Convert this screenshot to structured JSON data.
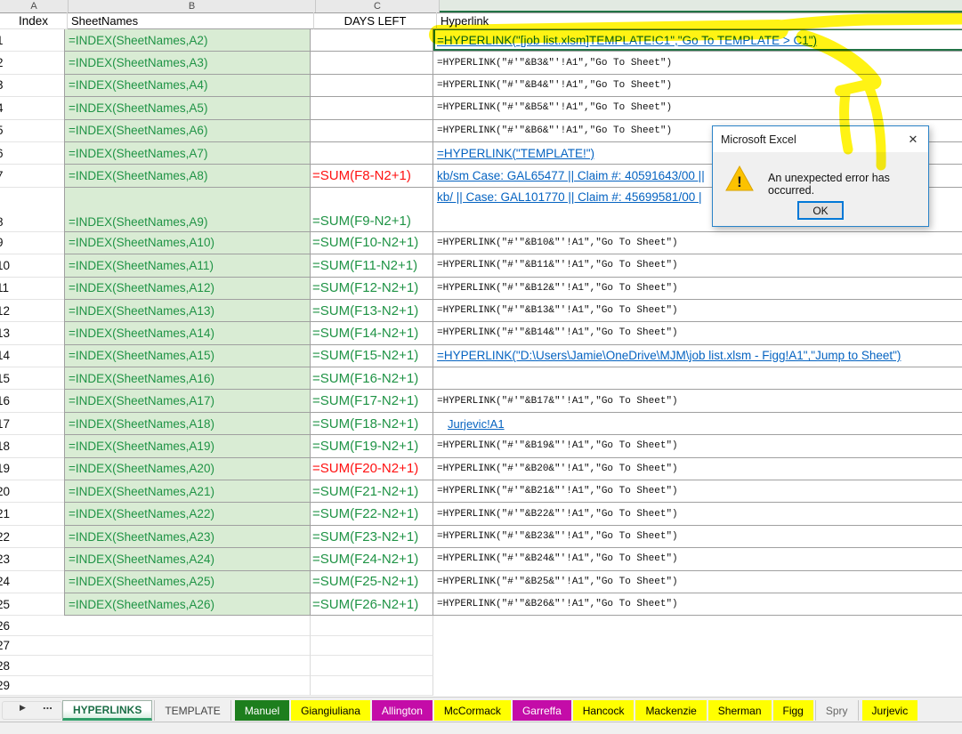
{
  "colors": {
    "accent_green": "#217346",
    "hyperlink_blue": "#0563C1",
    "formula_green": "#1f9345",
    "formula_red": "#ff1111",
    "green_fill": "#d9ecd4",
    "tab_yellow": "#ffff00",
    "tab_green": "#1d7e1d",
    "tab_magenta": "#c40ca8",
    "dialog_border": "#2a83c8",
    "highlighter": "#fff200"
  },
  "sheet": {
    "column_letters": [
      "A",
      "B",
      "C",
      "D"
    ],
    "headers": {
      "a": "Index",
      "b": "SheetNames",
      "c": "DAYS LEFT",
      "d": "Hyperlink"
    },
    "rows": [
      {
        "n": "1",
        "b": "=INDEX(SheetNames,A2)",
        "c": "",
        "cc": "",
        "d": "=HYPERLINK(\"[job list.xlsm]TEMPLATE!C1\",\"Go To TEMPLATE > C1\")",
        "ds": "link",
        "sel": true
      },
      {
        "n": "2",
        "b": "=INDEX(SheetNames,A3)",
        "c": "",
        "cc": "",
        "d": "=HYPERLINK(\"#'\"&B3&\"'!A1\",\"Go To Sheet\")",
        "ds": "mono"
      },
      {
        "n": "3",
        "b": "=INDEX(SheetNames,A4)",
        "c": "",
        "cc": "",
        "d": "=HYPERLINK(\"#'\"&B4&\"'!A1\",\"Go To Sheet\")",
        "ds": "mono"
      },
      {
        "n": "4",
        "b": "=INDEX(SheetNames,A5)",
        "c": "",
        "cc": "",
        "d": "=HYPERLINK(\"#'\"&B5&\"'!A1\",\"Go To Sheet\")",
        "ds": "mono"
      },
      {
        "n": "5",
        "b": "=INDEX(SheetNames,A6)",
        "c": "",
        "cc": "",
        "d": "=HYPERLINK(\"#'\"&B6&\"'!A1\",\"Go To Sheet\")",
        "ds": "mono"
      },
      {
        "n": "6",
        "b": "=INDEX(SheetNames,A7)",
        "c": "",
        "cc": "",
        "d": "=HYPERLINK(\"TEMPLATE!\")",
        "ds": "link"
      },
      {
        "n": "7",
        "b": "=INDEX(SheetNames,A8)",
        "c": "=SUM(F8-N2+1)",
        "cc": "red",
        "d": "kb/sm  Case: GAL65477 || Claim #: 40591643/00 || ",
        "ds": "link"
      },
      {
        "n": "8",
        "b": "=INDEX(SheetNames,A9)",
        "c": "=SUM(F9-N2+1)",
        "cc": "green",
        "d": "kb/ || Case: GAL101770 || Claim #: 45699581/00 | ",
        "ds": "link",
        "tall": true
      },
      {
        "n": "9",
        "b": "=INDEX(SheetNames,A10)",
        "c": "=SUM(F10-N2+1)",
        "cc": "green",
        "d": "=HYPERLINK(\"#'\"&B10&\"'!A1\",\"Go To Sheet\")",
        "ds": "mono"
      },
      {
        "n": "10",
        "b": "=INDEX(SheetNames,A11)",
        "c": "=SUM(F11-N2+1)",
        "cc": "green",
        "d": "=HYPERLINK(\"#'\"&B11&\"'!A1\",\"Go To Sheet\")",
        "ds": "mono"
      },
      {
        "n": "11",
        "b": "=INDEX(SheetNames,A12)",
        "c": "=SUM(F12-N2+1)",
        "cc": "green",
        "d": "=HYPERLINK(\"#'\"&B12&\"'!A1\",\"Go To Sheet\")",
        "ds": "mono"
      },
      {
        "n": "12",
        "b": "=INDEX(SheetNames,A13)",
        "c": "=SUM(F13-N2+1)",
        "cc": "green",
        "d": "=HYPERLINK(\"#'\"&B13&\"'!A1\",\"Go To Sheet\")",
        "ds": "mono"
      },
      {
        "n": "13",
        "b": "=INDEX(SheetNames,A14)",
        "c": "=SUM(F14-N2+1)",
        "cc": "green",
        "d": "=HYPERLINK(\"#'\"&B14&\"'!A1\",\"Go To Sheet\")",
        "ds": "mono"
      },
      {
        "n": "14",
        "b": "=INDEX(SheetNames,A15)",
        "c": "=SUM(F15-N2+1)",
        "cc": "green",
        "d": "=HYPERLINK(\"D:\\Users\\Jamie\\OneDrive\\MJM\\job list.xlsm - Figg!A1\",\"Jump to Sheet\")",
        "ds": "link"
      },
      {
        "n": "15",
        "b": "=INDEX(SheetNames,A16)",
        "c": "=SUM(F16-N2+1)",
        "cc": "green",
        "d": "",
        "ds": "mono"
      },
      {
        "n": "16",
        "b": "=INDEX(SheetNames,A17)",
        "c": "=SUM(F17-N2+1)",
        "cc": "green",
        "d": "=HYPERLINK(\"#'\"&B17&\"'!A1\",\"Go To Sheet\")",
        "ds": "mono"
      },
      {
        "n": "17",
        "b": "=INDEX(SheetNames,A18)",
        "c": "=SUM(F18-N2+1)",
        "cc": "green",
        "d": "Jurjevic!A1",
        "ds": "linkind"
      },
      {
        "n": "18",
        "b": "=INDEX(SheetNames,A19)",
        "c": "=SUM(F19-N2+1)",
        "cc": "green",
        "d": "=HYPERLINK(\"#'\"&B19&\"'!A1\",\"Go To Sheet\")",
        "ds": "mono"
      },
      {
        "n": "19",
        "b": "=INDEX(SheetNames,A20)",
        "c": "=SUM(F20-N2+1)",
        "cc": "red",
        "d": "=HYPERLINK(\"#'\"&B20&\"'!A1\",\"Go To Sheet\")",
        "ds": "mono"
      },
      {
        "n": "20",
        "b": "=INDEX(SheetNames,A21)",
        "c": "=SUM(F21-N2+1)",
        "cc": "green",
        "d": "=HYPERLINK(\"#'\"&B21&\"'!A1\",\"Go To Sheet\")",
        "ds": "mono"
      },
      {
        "n": "21",
        "b": "=INDEX(SheetNames,A22)",
        "c": "=SUM(F22-N2+1)",
        "cc": "green",
        "d": "=HYPERLINK(\"#'\"&B22&\"'!A1\",\"Go To Sheet\")",
        "ds": "mono"
      },
      {
        "n": "22",
        "b": "=INDEX(SheetNames,A23)",
        "c": "=SUM(F23-N2+1)",
        "cc": "green",
        "d": "=HYPERLINK(\"#'\"&B23&\"'!A1\",\"Go To Sheet\")",
        "ds": "mono"
      },
      {
        "n": "23",
        "b": "=INDEX(SheetNames,A24)",
        "c": "=SUM(F24-N2+1)",
        "cc": "green",
        "d": "=HYPERLINK(\"#'\"&B24&\"'!A1\",\"Go To Sheet\")",
        "ds": "mono"
      },
      {
        "n": "24",
        "b": "=INDEX(SheetNames,A25)",
        "c": "=SUM(F25-N2+1)",
        "cc": "green",
        "d": "=HYPERLINK(\"#'\"&B25&\"'!A1\",\"Go To Sheet\")",
        "ds": "mono"
      },
      {
        "n": "25",
        "b": "=INDEX(SheetNames,A26)",
        "c": "=SUM(F26-N2+1)",
        "cc": "green",
        "d": "=HYPERLINK(\"#'\"&B26&\"'!A1\",\"Go To Sheet\")",
        "ds": "mono"
      }
    ],
    "empty_row_numbers": [
      "26",
      "27",
      "28",
      "29"
    ]
  },
  "dialog": {
    "title": "Microsoft Excel",
    "message": "An unexpected error has occurred.",
    "ok_label": "OK",
    "close_glyph": "✕",
    "warning_glyph": "!"
  },
  "tabbar": {
    "scroll_right_glyph": "▶",
    "more_glyph": "...",
    "tabs": [
      {
        "label": "HYPERLINKS",
        "style": "active"
      },
      {
        "label": "TEMPLATE",
        "style": "plain"
      },
      {
        "label": "Manuel",
        "style": "green"
      },
      {
        "label": "Giangiuliana",
        "style": "yellow"
      },
      {
        "label": "Allington",
        "style": "magenta"
      },
      {
        "label": "McCormack",
        "style": "yellow"
      },
      {
        "label": "Garreffa",
        "style": "magenta"
      },
      {
        "label": "Hancock",
        "style": "yellow"
      },
      {
        "label": "Mackenzie",
        "style": "yellow"
      },
      {
        "label": "Sherman",
        "style": "yellow"
      },
      {
        "label": "Figg",
        "style": "yellow"
      },
      {
        "label": "Spry",
        "style": "plain2"
      },
      {
        "label": "Jurjevic",
        "style": "yellow"
      }
    ]
  }
}
